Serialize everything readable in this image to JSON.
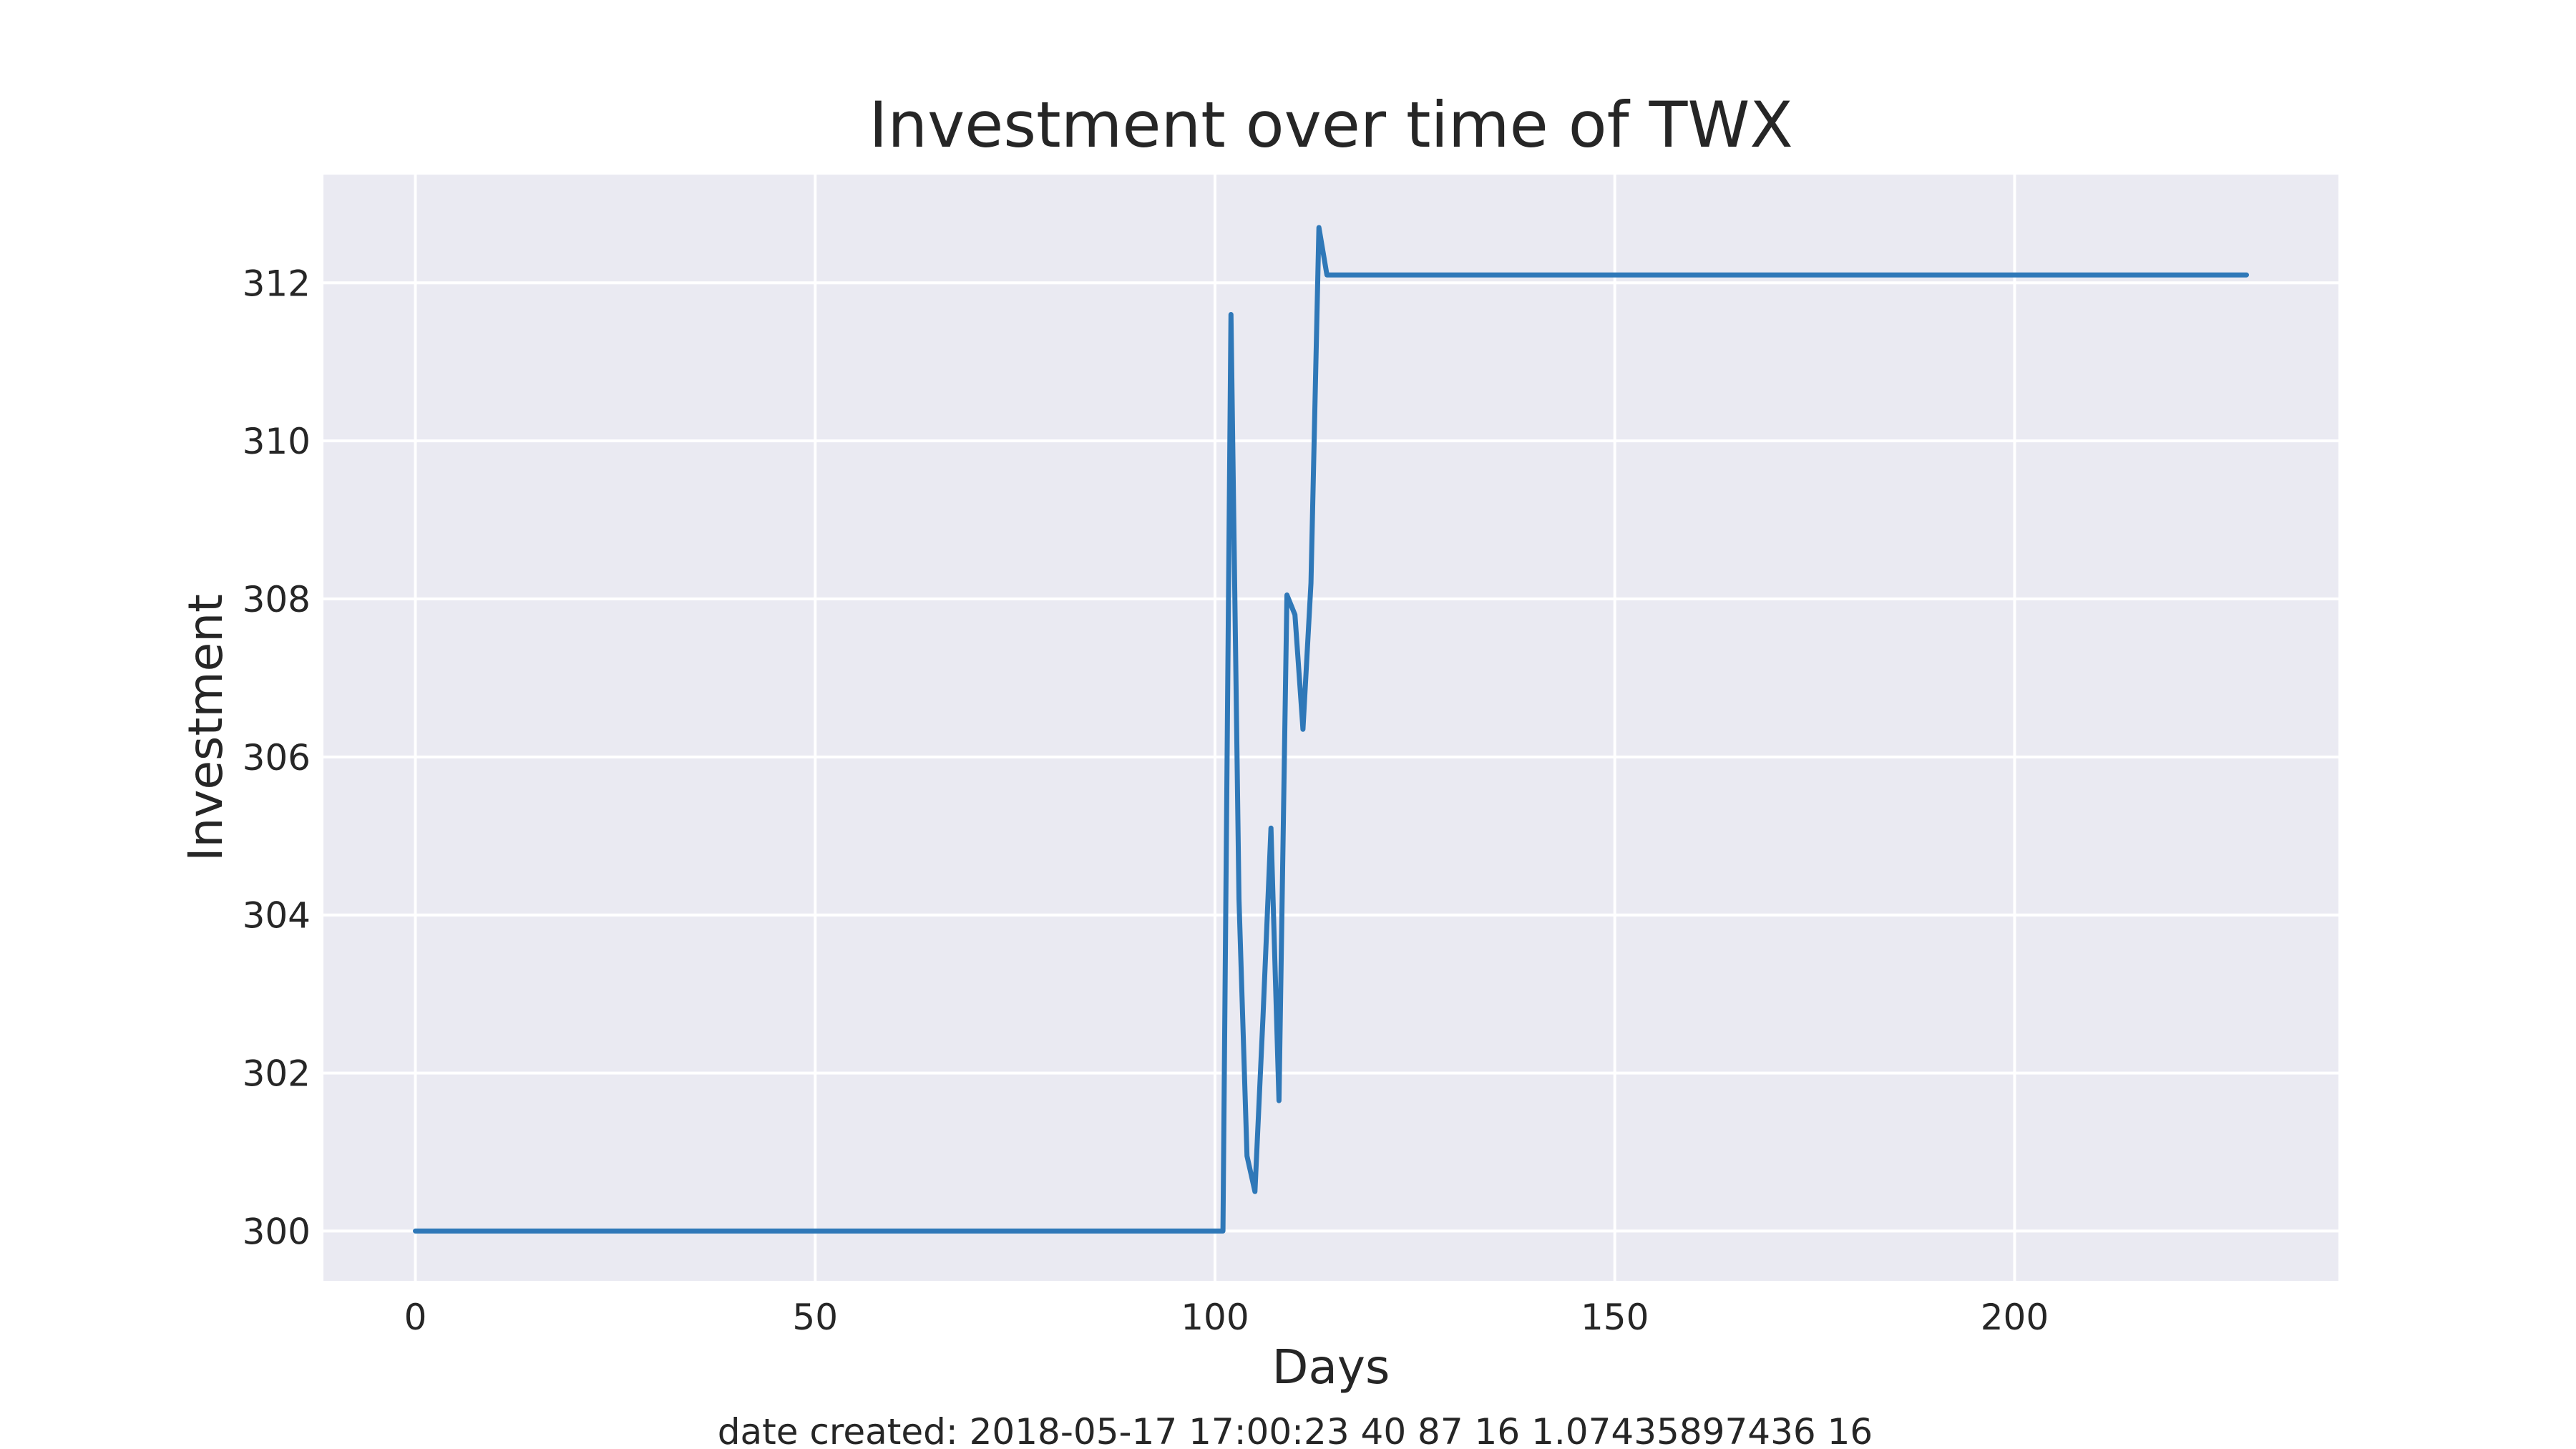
{
  "chart_data": {
    "type": "line",
    "title": "Investment over time of TWX",
    "xlabel": "Days",
    "ylabel": "Investment",
    "xlim": [
      -11.5,
      240.5
    ],
    "ylim": [
      299.37,
      313.37
    ],
    "xticks": [
      0,
      50,
      100,
      150,
      200
    ],
    "yticks": [
      300,
      302,
      304,
      306,
      308,
      310,
      312
    ],
    "grid": true,
    "background": "#eaeaf2",
    "line_color": "#2f78b8",
    "series": [
      {
        "x": [
          0,
          101,
          102,
          103,
          104,
          105,
          106,
          107,
          108,
          109,
          110,
          111,
          112,
          113,
          114,
          229
        ],
        "values": [
          300.0,
          300.0,
          311.6,
          304.2,
          300.95,
          300.5,
          302.7,
          305.1,
          301.65,
          308.05,
          307.8,
          306.35,
          308.2,
          312.7,
          312.1,
          312.1
        ]
      }
    ]
  },
  "footer": "date created: 2018-05-17 17:00:23 40 87 16 1.07435897436 16"
}
